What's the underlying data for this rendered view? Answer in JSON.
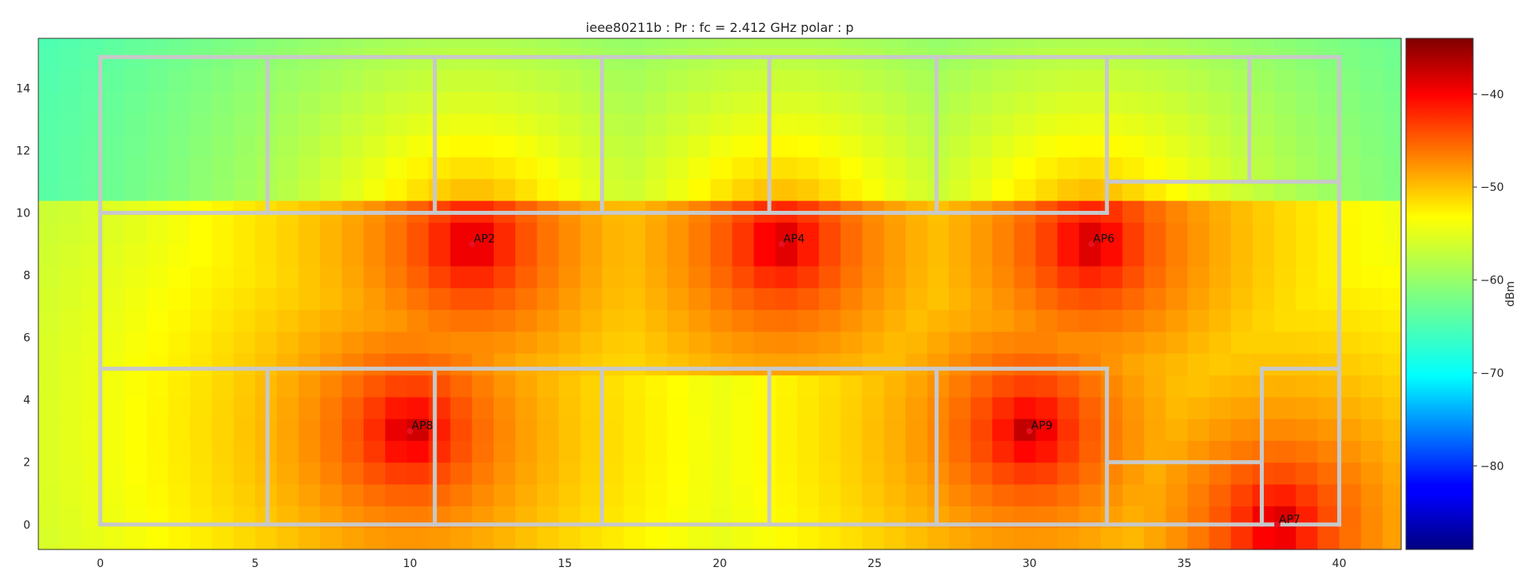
{
  "chart_data": {
    "type": "heatmap",
    "title": "ieee80211b : Pr :  fc = 2.412 GHz polar : p",
    "xlim": [
      -2,
      42
    ],
    "ylim": [
      -0.8,
      15.6
    ],
    "x_ticks": [
      0,
      5,
      10,
      15,
      20,
      25,
      30,
      35,
      40
    ],
    "y_ticks": [
      0,
      2,
      4,
      6,
      8,
      10,
      12,
      14
    ],
    "grid": false,
    "colormap": "jet",
    "colorbar": {
      "label": "dBm",
      "range": [
        -89,
        -34
      ],
      "ticks": [
        -40,
        -50,
        -60,
        -70,
        -80
      ],
      "placement": "right"
    },
    "access_points": [
      {
        "name": "AP2",
        "x": 12,
        "y": 9
      },
      {
        "name": "AP4",
        "x": 22,
        "y": 9
      },
      {
        "name": "AP6",
        "x": 32,
        "y": 9
      },
      {
        "name": "AP8",
        "x": 10,
        "y": 3
      },
      {
        "name": "AP9",
        "x": 30,
        "y": 3
      },
      {
        "name": "AP7",
        "x": 38,
        "y": 0
      }
    ],
    "walls": [
      [
        [
          0,
          0
        ],
        [
          40,
          0
        ]
      ],
      [
        [
          0,
          0
        ],
        [
          0,
          15
        ]
      ],
      [
        [
          0,
          15
        ],
        [
          40,
          15
        ]
      ],
      [
        [
          40,
          15
        ],
        [
          40,
          0
        ]
      ],
      [
        [
          0,
          10
        ],
        [
          32.5,
          10
        ]
      ],
      [
        [
          5.4,
          10
        ],
        [
          5.4,
          15
        ]
      ],
      [
        [
          10.8,
          10
        ],
        [
          10.8,
          15
        ]
      ],
      [
        [
          16.2,
          10
        ],
        [
          16.2,
          15
        ]
      ],
      [
        [
          21.6,
          10
        ],
        [
          21.6,
          15
        ]
      ],
      [
        [
          27,
          10
        ],
        [
          27,
          15
        ]
      ],
      [
        [
          32.5,
          10
        ],
        [
          32.5,
          15
        ]
      ],
      [
        [
          32.5,
          11
        ],
        [
          40,
          11
        ]
      ],
      [
        [
          37.1,
          11
        ],
        [
          37.1,
          15
        ]
      ],
      [
        [
          0,
          5
        ],
        [
          32.5,
          5
        ]
      ],
      [
        [
          5.4,
          5
        ],
        [
          5.4,
          0
        ]
      ],
      [
        [
          10.8,
          5
        ],
        [
          10.8,
          0
        ]
      ],
      [
        [
          16.2,
          5
        ],
        [
          16.2,
          0
        ]
      ],
      [
        [
          21.6,
          5
        ],
        [
          21.6,
          0
        ]
      ],
      [
        [
          27,
          5
        ],
        [
          27,
          0
        ]
      ],
      [
        [
          32.5,
          5
        ],
        [
          32.5,
          0
        ]
      ],
      [
        [
          32.5,
          2
        ],
        [
          37.5,
          2
        ]
      ],
      [
        [
          37.5,
          5
        ],
        [
          40,
          5
        ]
      ],
      [
        [
          37.5,
          5
        ],
        [
          37.5,
          0
        ]
      ]
    ]
  }
}
